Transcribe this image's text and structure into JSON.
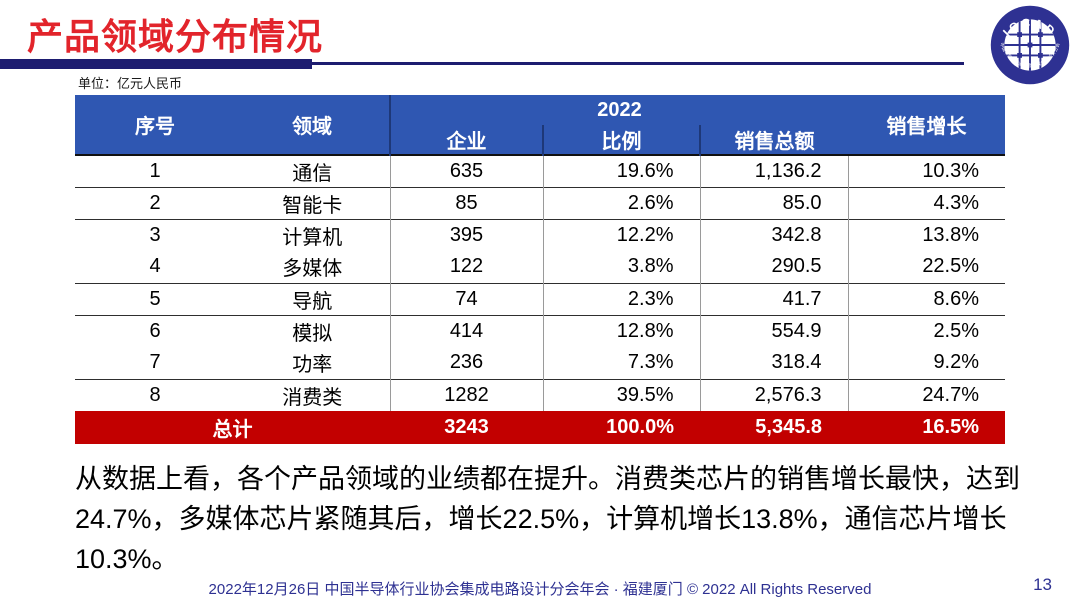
{
  "page": {
    "title": "产品领域分布情况",
    "unit_label": "单位：亿元人民币",
    "footer": "2022年12月26日 中国半导体行业协会集成电路设计分会年会 · 福建厦门 © 2022 All Rights Reserved",
    "page_number": "13"
  },
  "logo": {
    "acronym": "ICCAD",
    "ring_text": "中国半导体行业协会集成电路设计分会"
  },
  "table": {
    "header": {
      "seq": "序号",
      "domain": "领域",
      "year": "2022",
      "enterprises": "企业",
      "proportion": "比例",
      "total_sales": "销售总额",
      "sales_growth": "销售增长"
    },
    "rows": [
      [
        "1",
        "通信",
        "635",
        "19.6%",
        "1,136.2",
        "10.3%"
      ],
      [
        "2",
        "智能卡",
        "85",
        "2.6%",
        "85.0",
        "4.3%"
      ],
      [
        "3",
        "计算机",
        "395",
        "12.2%",
        "342.8",
        "13.8%"
      ],
      [
        "4",
        "多媒体",
        "122",
        "3.8%",
        "290.5",
        "22.5%"
      ],
      [
        "5",
        "导航",
        "74",
        "2.3%",
        "41.7",
        "8.6%"
      ],
      [
        "6",
        "模拟",
        "414",
        "12.8%",
        "554.9",
        "2.5%"
      ],
      [
        "7",
        "功率",
        "236",
        "7.3%",
        "318.4",
        "9.2%"
      ],
      [
        "8",
        "消费类",
        "1282",
        "39.5%",
        "2,576.3",
        "24.7%"
      ]
    ],
    "total": [
      "总计",
      "3243",
      "100.0%",
      "5,345.8",
      "16.5%"
    ]
  },
  "commentary": {
    "lines": [
      "从数据上看，各个产品领域的业绩都在提升。消费类芯片的销售增长最快，达到",
      "24.7%，多媒体芯片紧随其后，增长22.5%，计算机增长13.8%，通信芯片增长",
      "10.3%。"
    ]
  },
  "colors": {
    "title_red": "#E2242B",
    "underline_navy": "#1D1C70",
    "table_header_blue": "#2F57B2",
    "total_row_red": "#C20000",
    "footer_blue": "#2E3192",
    "logo_navy": "#2E3192"
  }
}
